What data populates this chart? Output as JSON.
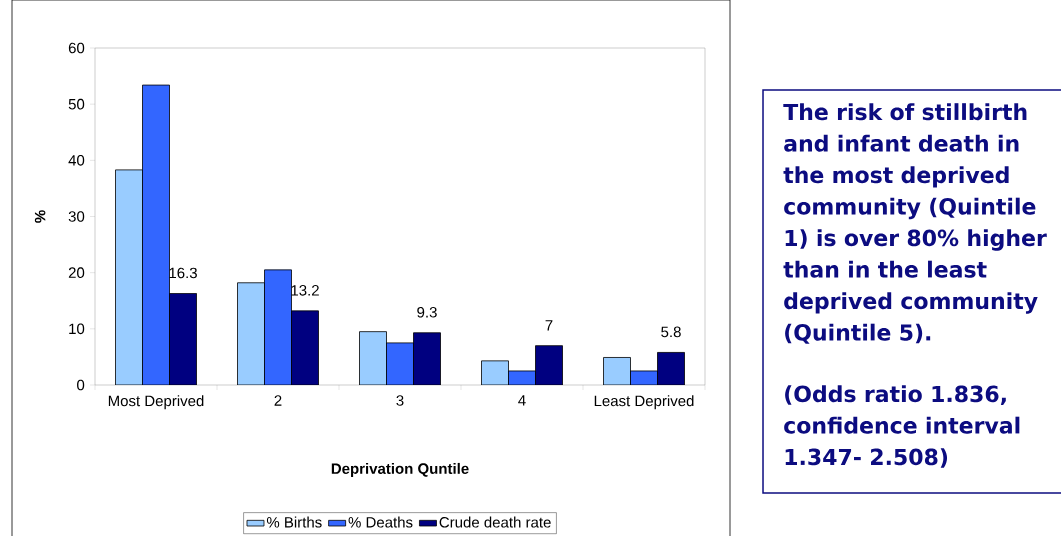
{
  "chart_data": {
    "type": "bar",
    "xlabel": "Deprivation Quntile",
    "ylabel": "%",
    "categories": [
      "Most Deprived",
      "2",
      "3",
      "4",
      "Least Deprived"
    ],
    "series": [
      {
        "name": "% Births",
        "color": "#99ccff",
        "values": [
          38.3,
          18.2,
          9.5,
          4.3,
          4.9
        ]
      },
      {
        "name": "% Deaths",
        "color": "#3366ff",
        "values": [
          53.4,
          20.5,
          7.5,
          2.5,
          2.5
        ]
      },
      {
        "name": "Crude death rate",
        "color": "#000080",
        "values": [
          16.3,
          13.2,
          9.3,
          7,
          5.8
        ],
        "value_labels": [
          "16.3",
          "13.2",
          "9.3",
          "7",
          "5.8"
        ]
      }
    ],
    "ylim": [
      0,
      60
    ],
    "yticks": [
      0,
      10,
      20,
      30,
      40,
      50,
      60
    ],
    "legend": "bottom",
    "annotations": [
      "The risk of stillbirth and infant death in the most deprived community (Quintile 1) is over 80% higher than in the least deprived community (Quintile 5).",
      "(Odds ratio 1.836, confidence interval 1.347- 2.508)"
    ]
  }
}
